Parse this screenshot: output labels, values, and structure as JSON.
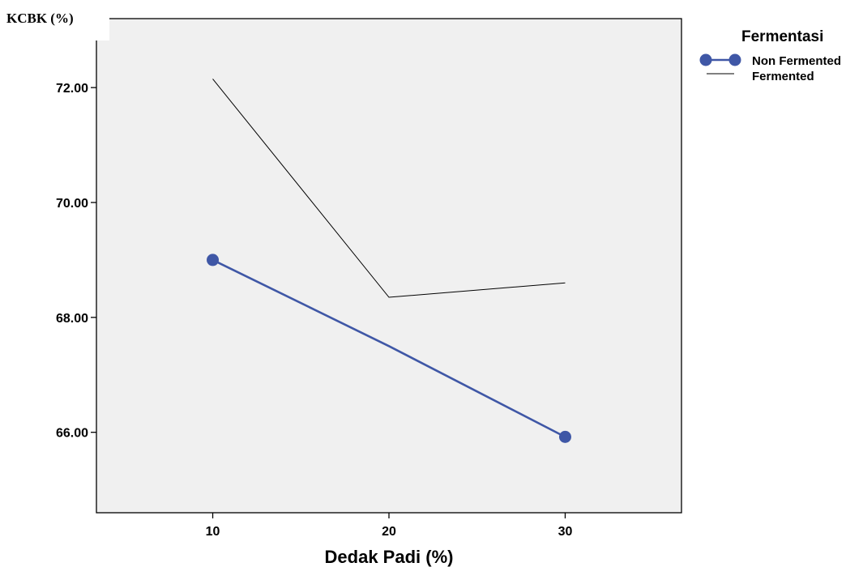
{
  "chart_data": {
    "type": "line",
    "title": "",
    "xlabel": "Dedak Padi (%)",
    "ylabel": "KCBK (%)",
    "x": [
      10,
      20,
      30
    ],
    "x_tick_labels": [
      "10",
      "20",
      "30"
    ],
    "xlim": [
      3.4,
      36.6
    ],
    "ylim": [
      64.6,
      73.2
    ],
    "y_ticks": [
      66,
      68,
      70,
      72
    ],
    "y_tick_labels": [
      "66.00",
      "68.00",
      "70.00",
      "72.00"
    ],
    "grid": false,
    "plot_background": "#f0f0f0",
    "legend": {
      "title": "Fermentasi",
      "placement": "top-right-outside"
    },
    "series": [
      {
        "name": "Non Fermented",
        "values": [
          69.0,
          67.5,
          65.92
        ],
        "color": "#3f57a6",
        "markers": [
          true,
          false,
          true
        ]
      },
      {
        "name": "Fermented",
        "values": [
          72.15,
          68.35,
          68.6
        ],
        "color": "#000000",
        "markers": [
          false,
          false,
          false
        ]
      }
    ]
  }
}
